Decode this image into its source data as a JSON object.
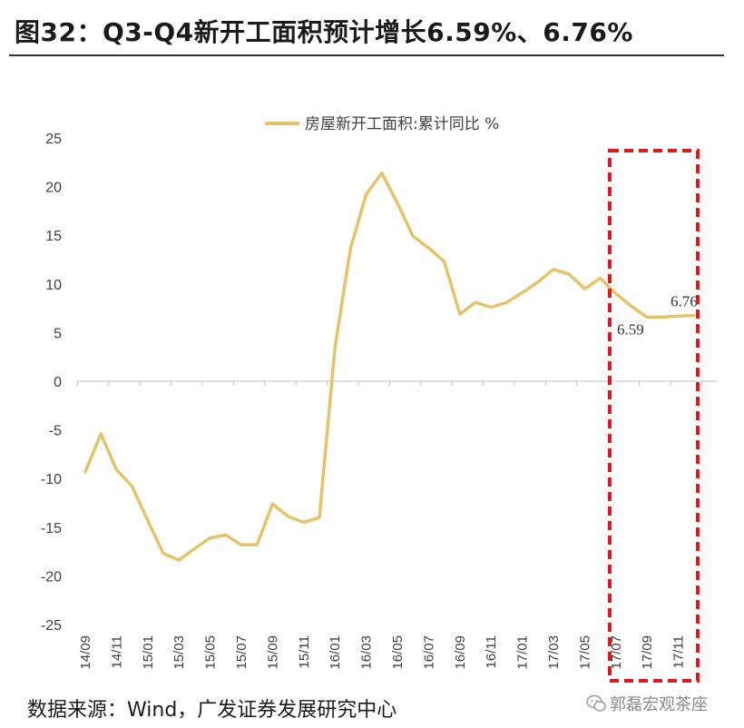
{
  "title": "图32：Q3-Q4新开工面积预计增长6.59%、6.76%",
  "footer": "数据来源：Wind，广发证券发展研究中心",
  "watermark": {
    "text": "郭磊宏观茶座",
    "icon": "wechat-icon"
  },
  "colors": {
    "line": "#E3C46A",
    "highlight": "#E0191B",
    "axis": "#BFBFBF",
    "text": "#404040"
  },
  "chart_data": {
    "type": "line",
    "title": "",
    "xlabel": "",
    "ylabel": "",
    "ylim": [
      -25,
      25
    ],
    "yticks": [
      25,
      20,
      15,
      10,
      5,
      0,
      -5,
      -10,
      -15,
      -20,
      -25
    ],
    "grid": false,
    "legend_position": "top-center",
    "x": [
      "14/09",
      "14/10",
      "14/11",
      "14/12",
      "15/01",
      "15/02",
      "15/03",
      "15/04",
      "15/05",
      "15/06",
      "15/07",
      "15/08",
      "15/09",
      "15/10",
      "15/11",
      "15/12",
      "16/01",
      "16/02",
      "16/03",
      "16/04",
      "16/05",
      "16/06",
      "16/07",
      "16/08",
      "16/09",
      "16/10",
      "16/11",
      "16/12",
      "17/01",
      "17/02",
      "17/03",
      "17/04",
      "17/05",
      "17/06",
      "17/07",
      "17/08",
      "17/09",
      "17/10",
      "17/11",
      "17/12"
    ],
    "tick_labels": [
      "14/09",
      "14/11",
      "15/01",
      "15/03",
      "15/05",
      "15/07",
      "15/09",
      "15/11",
      "16/01",
      "16/03",
      "16/05",
      "16/07",
      "16/09",
      "16/11",
      "17/01",
      "17/03",
      "17/05",
      "17/07",
      "17/09",
      "17/11"
    ],
    "series": [
      {
        "name": "房屋新开工面积:累计同比 %",
        "values": [
          -9.3,
          -5.4,
          -9.1,
          -10.8,
          -14.3,
          -17.7,
          -18.4,
          -17.2,
          -16.1,
          -15.8,
          -16.8,
          -16.8,
          -12.6,
          -13.9,
          -14.5,
          -14.0,
          3.5,
          13.7,
          19.2,
          21.4,
          18.3,
          14.9,
          13.7,
          12.3,
          6.9,
          8.1,
          7.6,
          8.1,
          9.1,
          10.2,
          11.5,
          11.0,
          9.5,
          10.6,
          9.0,
          7.7,
          6.59,
          6.6,
          6.7,
          6.76
        ]
      }
    ],
    "annotations": [
      {
        "label": "6.59",
        "x": "17/09",
        "value": 6.59
      },
      {
        "label": "6.76",
        "x": "17/12",
        "value": 6.76
      }
    ],
    "highlight_range": [
      "17/08",
      "17/12"
    ]
  }
}
